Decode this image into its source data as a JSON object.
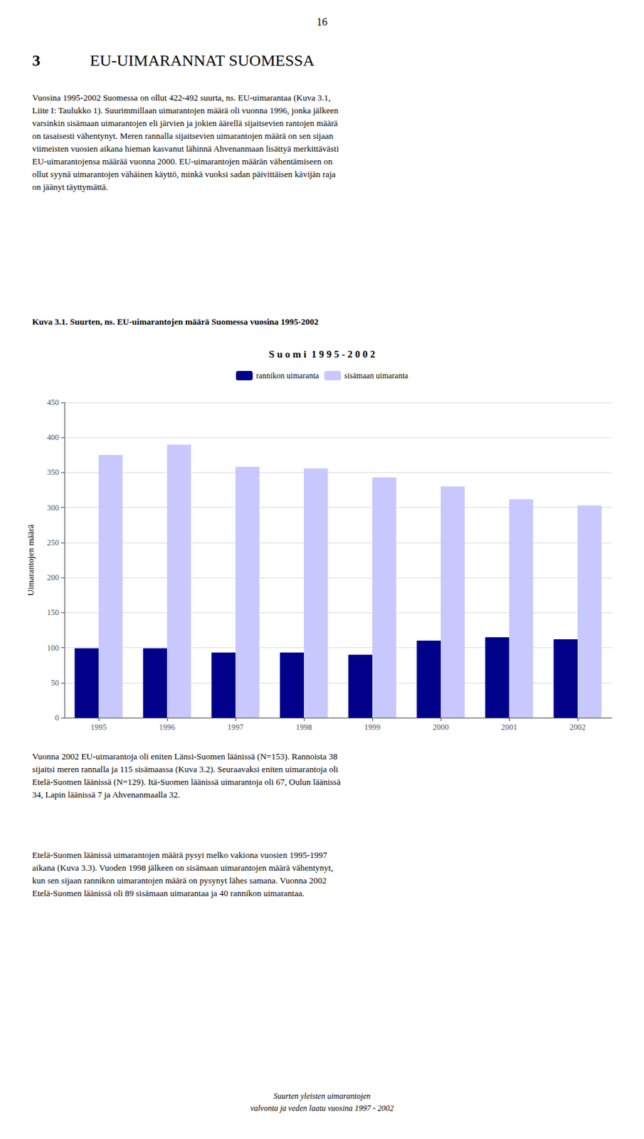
{
  "chart_data": {
    "type": "bar",
    "title": "S u o m i  1 9 9 5 - 2 0 0 2",
    "categories": [
      "1995",
      "1996",
      "1997",
      "1998",
      "1999",
      "2000",
      "2001",
      "2002"
    ],
    "series": [
      {
        "name": "rannikon uimaranta",
        "color": "#00008B",
        "values": [
          99,
          99,
          93,
          93,
          90,
          110,
          115,
          112
        ]
      },
      {
        "name": "sisämaan uimaranta",
        "color": "#C8C8FF",
        "values": [
          375,
          390,
          358,
          356,
          343,
          330,
          312,
          303
        ]
      }
    ],
    "ylabel": "Uimarantojen määrä",
    "ylim": [
      0,
      450
    ],
    "yticks": [
      0,
      50,
      100,
      150,
      200,
      250,
      300,
      350,
      400,
      450
    ],
    "grid": true,
    "legend": "top",
    "annotations": [
      "16",
      "3",
      "EU-UIMARANNAT SUOMESSA",
      "Vuosina 1995-2002 Suomessa on ollut 422-492 suurta, ns. EU-uimarantaa (Kuva 3.1,\nLiite I: Taulukko 1). Suurimmillaan uimarantojen määrä oli vuonna 1996, jonka jälkeen\nvarsinkin sisämaan uimarantojen eli järvien ja jokien äärellä sijaitsevien rantojen määrä\non tasaisesti vähentynyt. Meren rannalla sijaitsevien uimarantojen määrä on sen sijaan\nviimeisten vuosien aikana hieman kasvanut lähinnä Ahvenanmaan lisättyä merkittävästi\nEU-uimarantojensa määrää vuonna 2000. EU-uimarantojen määrän vähentämiseen on\nollut syynä uimarantojen vähäinen käyttö, minkä vuoksi sadan päivittäisen kävijän raja\non jäänyt täyttymättä.",
      "Kuva 3.1. Suurten, ns. EU-uimarantojen määrä Suomessa vuosina 1995-2002",
      "Vuonna 2002 EU-uimarantoja oli eniten Länsi-Suomen läänissä (N=153). Rannoista 38\nsijaitsi meren rannalla ja 115 sisämaassa (Kuva 3.2). Seuraavaksi eniten uimarantoja oli\nEtelä-Suomen läänissä (N=129). Itä-Suomen läänissä uimarantoja oli 67, Oulun läänissä\n34, Lapin läänissä 7 ja Ahvenanmaalla 32.",
      "Etelä-Suomen läänissä uimarantojen määrä pysyi melko vakiona vuosien 1995-1997\naikana (Kuva 3.3). Vuoden 1998 jälkeen on sisämaan uimarantojen määrä vähentynyt,\nkun sen sijaan rannikon uimarantojen määrä on pysynyt lähes samana. Vuonna 2002\nEtelä-Suomen läänissä oli 89 sisämaan uimarantaa ja 40 rannikon uimarantaa.",
      "Suurten yleisten uimarantojen\nvalvonta ja veden laatu vuosina 1997 - 2002"
    ]
  }
}
